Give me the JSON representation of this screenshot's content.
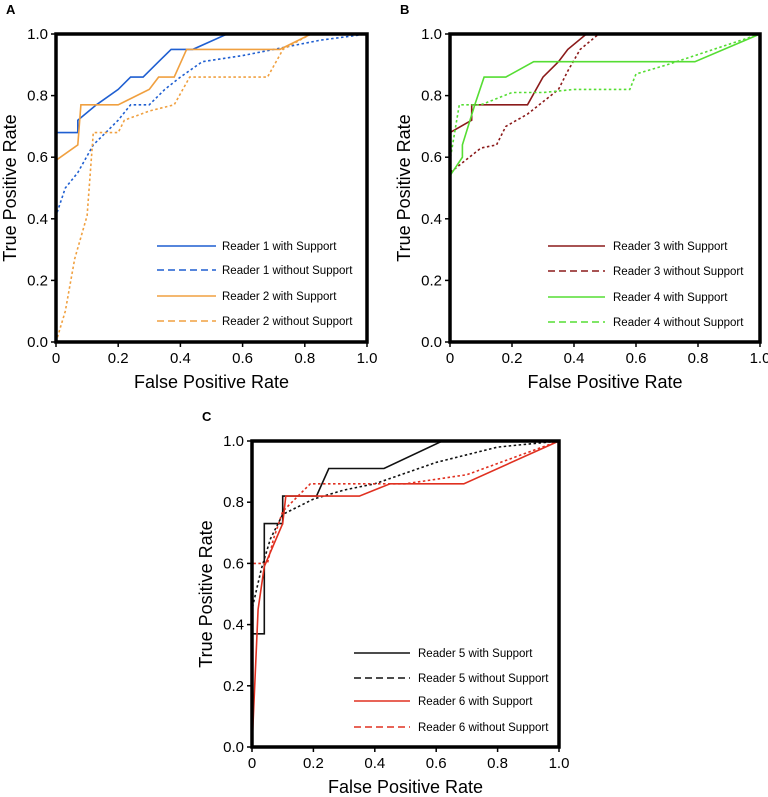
{
  "chart_data": [
    {
      "type": "line",
      "panel": "A",
      "xlabel": "False Positive Rate",
      "ylabel": "True Positive Rate",
      "xlim": [
        0,
        1
      ],
      "ylim": [
        0,
        1
      ],
      "xticks": [
        "0",
        "0.2",
        "0.4",
        "0.6",
        "0.8",
        "1.0"
      ],
      "yticks": [
        "0.0",
        "0.2",
        "0.4",
        "0.6",
        "0.8",
        "1.0"
      ],
      "legend_position": "lower-right",
      "series": [
        {
          "name": "Reader 1 with Support",
          "color": "#1f5fd1",
          "dash": "solid",
          "points": [
            [
              0,
              0
            ],
            [
              0,
              0.68
            ],
            [
              0.07,
              0.68
            ],
            [
              0.07,
              0.72
            ],
            [
              0.13,
              0.77
            ],
            [
              0.2,
              0.82
            ],
            [
              0.24,
              0.86
            ],
            [
              0.28,
              0.86
            ],
            [
              0.33,
              0.91
            ],
            [
              0.37,
              0.95
            ],
            [
              0.44,
              0.95
            ],
            [
              0.55,
              1.0
            ],
            [
              1.0,
              1.0
            ]
          ]
        },
        {
          "name": "Reader 1 without Support",
          "color": "#1f5fd1",
          "dash": "dotted",
          "points": [
            [
              0,
              0
            ],
            [
              0,
              0.41
            ],
            [
              0.03,
              0.5
            ],
            [
              0.07,
              0.55
            ],
            [
              0.12,
              0.64
            ],
            [
              0.2,
              0.72
            ],
            [
              0.24,
              0.77
            ],
            [
              0.3,
              0.77
            ],
            [
              0.35,
              0.82
            ],
            [
              0.4,
              0.86
            ],
            [
              0.47,
              0.91
            ],
            [
              0.6,
              0.93
            ],
            [
              0.75,
              0.96
            ],
            [
              0.85,
              0.98
            ],
            [
              1.0,
              1.0
            ]
          ]
        },
        {
          "name": "Reader 2 with Support",
          "color": "#f0a040",
          "dash": "solid",
          "points": [
            [
              0,
              0
            ],
            [
              0,
              0.59
            ],
            [
              0.07,
              0.64
            ],
            [
              0.08,
              0.77
            ],
            [
              0.2,
              0.77
            ],
            [
              0.3,
              0.82
            ],
            [
              0.33,
              0.86
            ],
            [
              0.38,
              0.86
            ],
            [
              0.42,
              0.95
            ],
            [
              0.72,
              0.95
            ],
            [
              0.82,
              1.0
            ],
            [
              1.0,
              1.0
            ]
          ]
        },
        {
          "name": "Reader 2 without Support",
          "color": "#f0a040",
          "dash": "dotted",
          "points": [
            [
              0,
              0
            ],
            [
              0.03,
              0.1
            ],
            [
              0.06,
              0.27
            ],
            [
              0.1,
              0.41
            ],
            [
              0.12,
              0.68
            ],
            [
              0.2,
              0.68
            ],
            [
              0.22,
              0.72
            ],
            [
              0.3,
              0.75
            ],
            [
              0.38,
              0.77
            ],
            [
              0.43,
              0.86
            ],
            [
              0.62,
              0.86
            ],
            [
              0.68,
              0.86
            ],
            [
              0.73,
              0.95
            ],
            [
              0.82,
              1.0
            ],
            [
              1.0,
              1.0
            ]
          ]
        }
      ]
    },
    {
      "type": "line",
      "panel": "B",
      "xlabel": "False Positive Rate",
      "ylabel": "True Positive Rate",
      "xlim": [
        0,
        1
      ],
      "ylim": [
        0,
        1
      ],
      "xticks": [
        "0",
        "0.2",
        "0.4",
        "0.6",
        "0.8",
        "1.0"
      ],
      "yticks": [
        "0.0",
        "0.2",
        "0.4",
        "0.6",
        "0.8",
        "1.0"
      ],
      "legend_position": "lower-right",
      "series": [
        {
          "name": "Reader 3 with Support",
          "color": "#8b1a1a",
          "dash": "solid",
          "points": [
            [
              0,
              0
            ],
            [
              0,
              0.68
            ],
            [
              0.07,
              0.72
            ],
            [
              0.07,
              0.77
            ],
            [
              0.25,
              0.77
            ],
            [
              0.3,
              0.86
            ],
            [
              0.35,
              0.91
            ],
            [
              0.38,
              0.95
            ],
            [
              0.44,
              1.0
            ],
            [
              1.0,
              1.0
            ]
          ]
        },
        {
          "name": "Reader 3 without Support",
          "color": "#8b1a1a",
          "dash": "dotted",
          "points": [
            [
              0,
              0
            ],
            [
              0,
              0.55
            ],
            [
              0.05,
              0.59
            ],
            [
              0.1,
              0.63
            ],
            [
              0.15,
              0.64
            ],
            [
              0.18,
              0.7
            ],
            [
              0.25,
              0.74
            ],
            [
              0.3,
              0.78
            ],
            [
              0.35,
              0.82
            ],
            [
              0.38,
              0.88
            ],
            [
              0.42,
              0.95
            ],
            [
              0.48,
              1.0
            ],
            [
              1.0,
              1.0
            ]
          ]
        },
        {
          "name": "Reader 4 with Support",
          "color": "#55dd33",
          "dash": "solid",
          "points": [
            [
              0,
              0
            ],
            [
              0,
              0.54
            ],
            [
              0.04,
              0.6
            ],
            [
              0.04,
              0.64
            ],
            [
              0.08,
              0.77
            ],
            [
              0.11,
              0.86
            ],
            [
              0.18,
              0.86
            ],
            [
              0.27,
              0.91
            ],
            [
              0.79,
              0.91
            ],
            [
              1.0,
              1.0
            ]
          ]
        },
        {
          "name": "Reader 4 without Support",
          "color": "#55dd33",
          "dash": "dotted",
          "points": [
            [
              0,
              0
            ],
            [
              0,
              0.59
            ],
            [
              0.03,
              0.77
            ],
            [
              0.1,
              0.77
            ],
            [
              0.2,
              0.81
            ],
            [
              0.3,
              0.81
            ],
            [
              0.4,
              0.82
            ],
            [
              0.58,
              0.82
            ],
            [
              0.6,
              0.87
            ],
            [
              0.7,
              0.9
            ],
            [
              0.85,
              0.95
            ],
            [
              1.0,
              1.0
            ]
          ]
        }
      ]
    },
    {
      "type": "line",
      "panel": "C",
      "xlabel": "False Positive Rate",
      "ylabel": "True Positive Rate",
      "xlim": [
        0,
        1
      ],
      "ylim": [
        0,
        1
      ],
      "xticks": [
        "0",
        "0.2",
        "0.4",
        "0.6",
        "0.8",
        "1.0"
      ],
      "yticks": [
        "0.0",
        "0.2",
        "0.4",
        "0.6",
        "0.8",
        "1.0"
      ],
      "legend_position": "lower-right",
      "series": [
        {
          "name": "Reader 5 with Support",
          "color": "#111111",
          "dash": "solid",
          "points": [
            [
              0,
              0
            ],
            [
              0,
              0.37
            ],
            [
              0.04,
              0.37
            ],
            [
              0.04,
              0.73
            ],
            [
              0.1,
              0.73
            ],
            [
              0.1,
              0.82
            ],
            [
              0.21,
              0.82
            ],
            [
              0.25,
              0.91
            ],
            [
              0.43,
              0.91
            ],
            [
              0.62,
              1.0
            ],
            [
              1.0,
              1.0
            ]
          ]
        },
        {
          "name": "Reader 5 without Support",
          "color": "#111111",
          "dash": "dotted",
          "points": [
            [
              0,
              0
            ],
            [
              0,
              0.45
            ],
            [
              0.03,
              0.58
            ],
            [
              0.06,
              0.68
            ],
            [
              0.1,
              0.76
            ],
            [
              0.2,
              0.81
            ],
            [
              0.3,
              0.84
            ],
            [
              0.4,
              0.86
            ],
            [
              0.6,
              0.93
            ],
            [
              0.8,
              0.98
            ],
            [
              1.0,
              1.0
            ]
          ]
        },
        {
          "name": "Reader 6 with Support",
          "color": "#e03020",
          "dash": "solid",
          "points": [
            [
              0,
              0
            ],
            [
              0.02,
              0.45
            ],
            [
              0.04,
              0.59
            ],
            [
              0.1,
              0.73
            ],
            [
              0.11,
              0.82
            ],
            [
              0.35,
              0.82
            ],
            [
              0.45,
              0.86
            ],
            [
              0.69,
              0.86
            ],
            [
              1.0,
              1.0
            ]
          ]
        },
        {
          "name": "Reader 6 without Support",
          "color": "#e03020",
          "dash": "dotted",
          "points": [
            [
              0,
              0
            ],
            [
              0,
              0.6
            ],
            [
              0.05,
              0.6
            ],
            [
              0.07,
              0.68
            ],
            [
              0.1,
              0.77
            ],
            [
              0.19,
              0.86
            ],
            [
              0.5,
              0.86
            ],
            [
              0.7,
              0.89
            ],
            [
              1.0,
              1.0
            ]
          ]
        }
      ]
    }
  ]
}
